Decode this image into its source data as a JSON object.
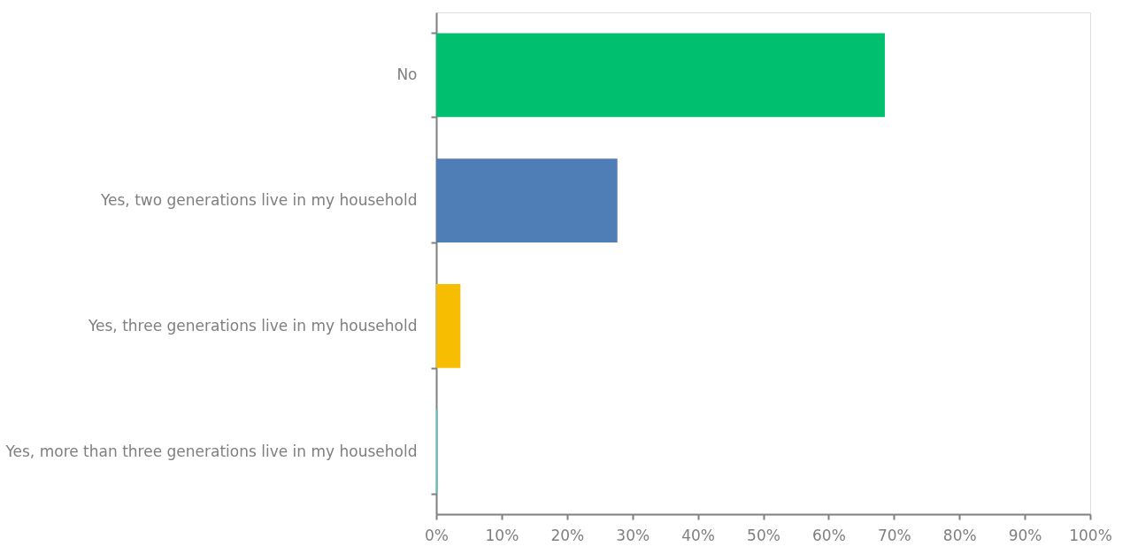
{
  "chart_data": {
    "type": "bar",
    "orientation": "horizontal",
    "categories": [
      "No",
      "Yes, two generations live in my household",
      "Yes, three generations live in my household",
      "Yes, more than three generations live in my household"
    ],
    "values": [
      68.6,
      27.7,
      3.7,
      0.2
    ],
    "colors": [
      "#00bf6f",
      "#4f7db5",
      "#f7bd00",
      "#4bc6c6"
    ],
    "xlim": [
      0,
      100
    ],
    "xticks": [
      {
        "value": 0,
        "label": "0%"
      },
      {
        "value": 10,
        "label": "10%"
      },
      {
        "value": 20,
        "label": "20%"
      },
      {
        "value": 30,
        "label": "30%"
      },
      {
        "value": 40,
        "label": "40%"
      },
      {
        "value": 50,
        "label": "50%"
      },
      {
        "value": 60,
        "label": "60%"
      },
      {
        "value": 70,
        "label": "70%"
      },
      {
        "value": 80,
        "label": "80%"
      },
      {
        "value": 90,
        "label": "90%"
      },
      {
        "value": 100,
        "label": "100%"
      }
    ],
    "grid": false
  }
}
